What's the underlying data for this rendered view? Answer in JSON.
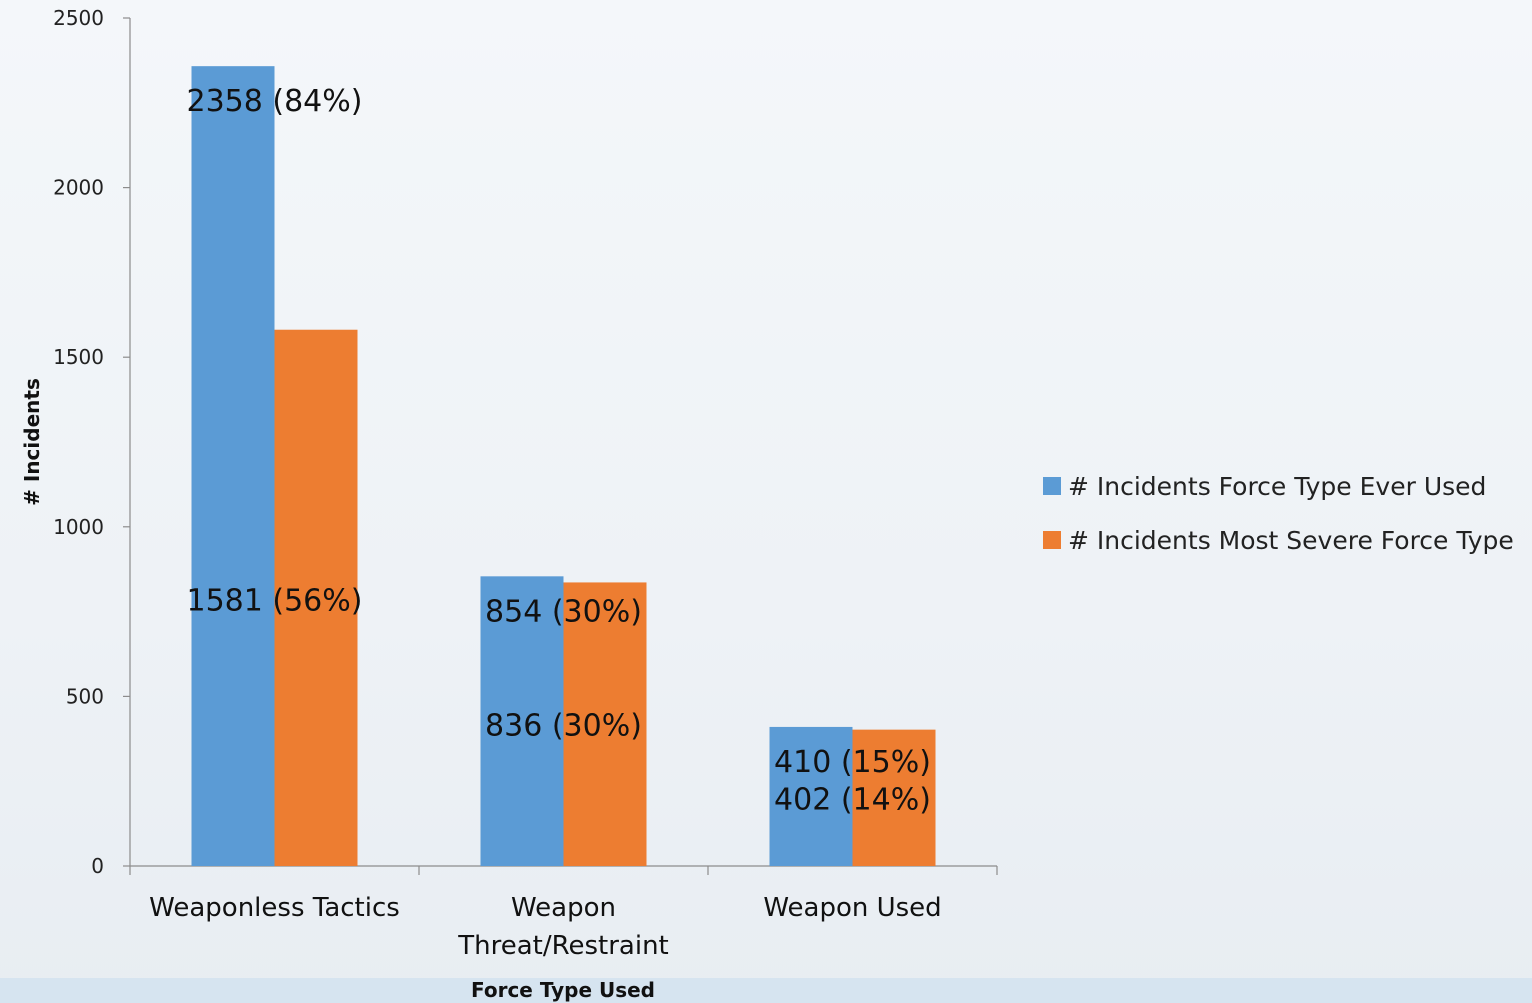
{
  "chart_data": {
    "type": "bar",
    "title": "",
    "xlabel": "Force Type Used",
    "ylabel": "# Incidents",
    "ylim": [
      0,
      2500
    ],
    "yticks": [
      0,
      500,
      1000,
      1500,
      2000,
      2500
    ],
    "categories": [
      [
        "Weaponless Tactics"
      ],
      [
        "Weapon",
        "Threat/Restraint"
      ],
      [
        "Weapon Used"
      ]
    ],
    "series": [
      {
        "name": "# Incidents Force Type Ever Used",
        "color": "#5b9bd5",
        "values": [
          2358,
          854,
          410
        ],
        "labels": [
          "2358 (84%)",
          "854 (30%)",
          "410 (15%)"
        ]
      },
      {
        "name": "# Incidents Most Severe Force Type",
        "color": "#ed7d31",
        "values": [
          1581,
          836,
          402
        ],
        "labels": [
          "1581 (56%)",
          "836 (30%)",
          "402 (14%)"
        ]
      }
    ],
    "legend": "right",
    "grid": false
  }
}
